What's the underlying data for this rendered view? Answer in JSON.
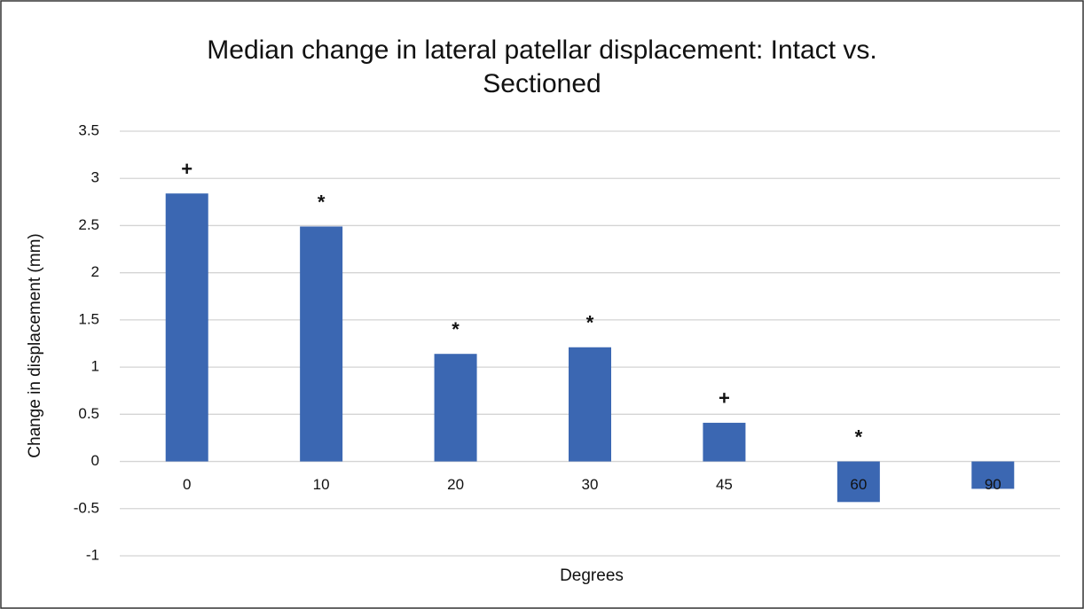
{
  "chart_data": {
    "type": "bar",
    "title": "Median change in lateral patellar displacement: Intact vs. Sectioned",
    "x_label": "Degrees",
    "y_label": "Change in displacement (mm)",
    "categories": [
      "0",
      "10",
      "20",
      "30",
      "45",
      "60",
      "90"
    ],
    "values": [
      2.84,
      2.49,
      1.14,
      1.21,
      0.41,
      -0.43,
      -0.29
    ],
    "annotations": [
      "+",
      "*",
      "*",
      "*",
      "+",
      "*",
      null
    ],
    "color": "#3b67b2",
    "ylim": [
      -1,
      3.5
    ],
    "yticks": [
      3.5,
      3,
      2.5,
      2,
      1.5,
      1,
      0.5,
      0,
      -0.5,
      -1
    ],
    "grid": true
  }
}
